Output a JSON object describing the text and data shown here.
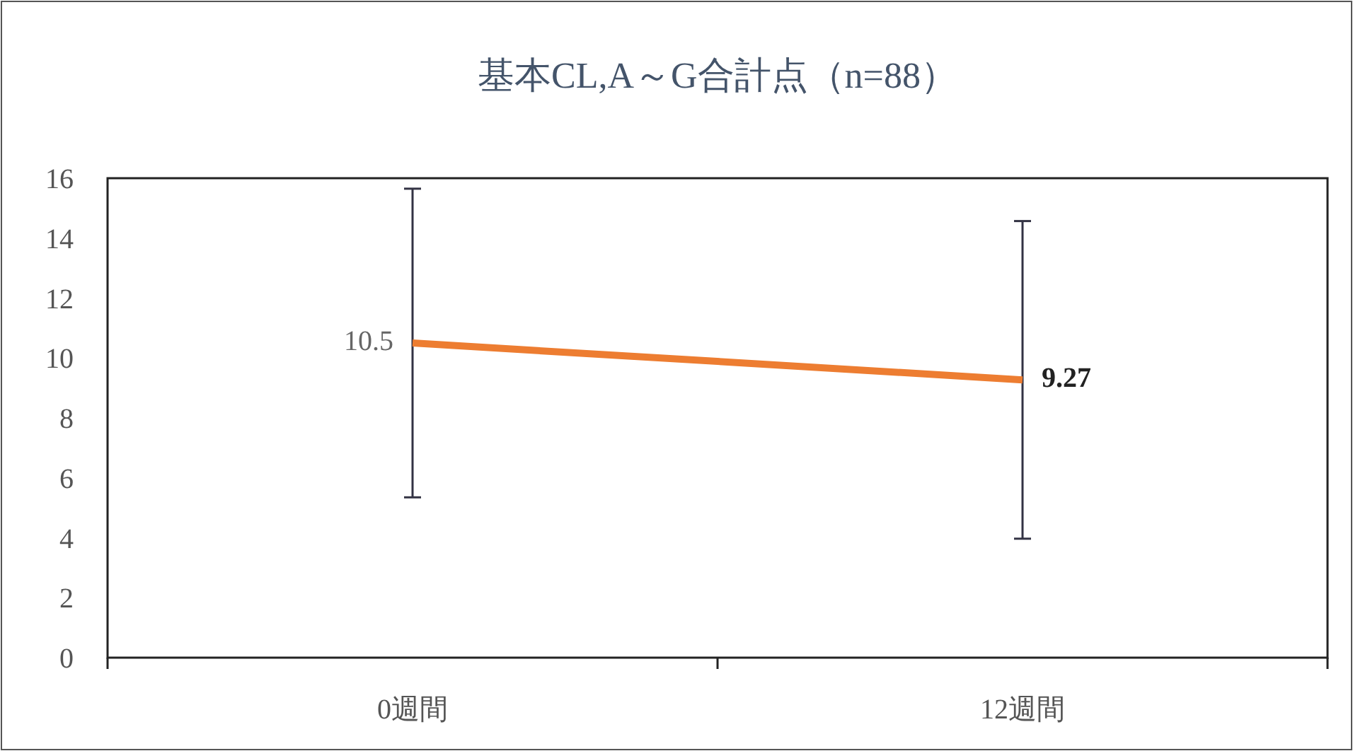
{
  "chart_data": {
    "type": "line",
    "title": "基本CL,A～G合計点（n=88）",
    "categories": [
      "0週間",
      "12週間"
    ],
    "values": [
      10.5,
      9.27
    ],
    "errors": [
      5.15,
      5.3
    ],
    "color": "#ed7d31",
    "ylim": [
      0,
      16
    ],
    "yticks": [
      0,
      2,
      4,
      6,
      8,
      10,
      12,
      14,
      16
    ],
    "data_labels": true
  }
}
